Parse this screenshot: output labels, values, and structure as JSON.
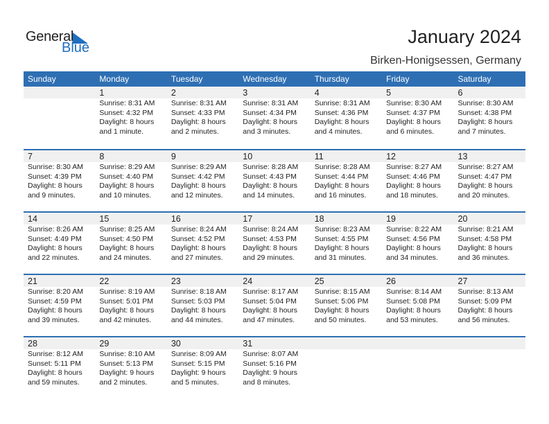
{
  "logo": {
    "word1": "General",
    "word2": "Blue"
  },
  "title": "January 2024",
  "location": "Birken-Honigsessen, Germany",
  "colors": {
    "header": "#2e6fb3",
    "band": "#f0f0f0",
    "logo_blue": "#1f6fbf"
  },
  "weekdays": [
    "Sunday",
    "Monday",
    "Tuesday",
    "Wednesday",
    "Thursday",
    "Friday",
    "Saturday"
  ],
  "weeks": [
    [
      null,
      {
        "day": "1",
        "sunrise": "Sunrise: 8:31 AM",
        "sunset": "Sunset: 4:32 PM",
        "daylight1": "Daylight: 8 hours",
        "daylight2": "and 1 minute."
      },
      {
        "day": "2",
        "sunrise": "Sunrise: 8:31 AM",
        "sunset": "Sunset: 4:33 PM",
        "daylight1": "Daylight: 8 hours",
        "daylight2": "and 2 minutes."
      },
      {
        "day": "3",
        "sunrise": "Sunrise: 8:31 AM",
        "sunset": "Sunset: 4:34 PM",
        "daylight1": "Daylight: 8 hours",
        "daylight2": "and 3 minutes."
      },
      {
        "day": "4",
        "sunrise": "Sunrise: 8:31 AM",
        "sunset": "Sunset: 4:36 PM",
        "daylight1": "Daylight: 8 hours",
        "daylight2": "and 4 minutes."
      },
      {
        "day": "5",
        "sunrise": "Sunrise: 8:30 AM",
        "sunset": "Sunset: 4:37 PM",
        "daylight1": "Daylight: 8 hours",
        "daylight2": "and 6 minutes."
      },
      {
        "day": "6",
        "sunrise": "Sunrise: 8:30 AM",
        "sunset": "Sunset: 4:38 PM",
        "daylight1": "Daylight: 8 hours",
        "daylight2": "and 7 minutes."
      }
    ],
    [
      {
        "day": "7",
        "sunrise": "Sunrise: 8:30 AM",
        "sunset": "Sunset: 4:39 PM",
        "daylight1": "Daylight: 8 hours",
        "daylight2": "and 9 minutes."
      },
      {
        "day": "8",
        "sunrise": "Sunrise: 8:29 AM",
        "sunset": "Sunset: 4:40 PM",
        "daylight1": "Daylight: 8 hours",
        "daylight2": "and 10 minutes."
      },
      {
        "day": "9",
        "sunrise": "Sunrise: 8:29 AM",
        "sunset": "Sunset: 4:42 PM",
        "daylight1": "Daylight: 8 hours",
        "daylight2": "and 12 minutes."
      },
      {
        "day": "10",
        "sunrise": "Sunrise: 8:28 AM",
        "sunset": "Sunset: 4:43 PM",
        "daylight1": "Daylight: 8 hours",
        "daylight2": "and 14 minutes."
      },
      {
        "day": "11",
        "sunrise": "Sunrise: 8:28 AM",
        "sunset": "Sunset: 4:44 PM",
        "daylight1": "Daylight: 8 hours",
        "daylight2": "and 16 minutes."
      },
      {
        "day": "12",
        "sunrise": "Sunrise: 8:27 AM",
        "sunset": "Sunset: 4:46 PM",
        "daylight1": "Daylight: 8 hours",
        "daylight2": "and 18 minutes."
      },
      {
        "day": "13",
        "sunrise": "Sunrise: 8:27 AM",
        "sunset": "Sunset: 4:47 PM",
        "daylight1": "Daylight: 8 hours",
        "daylight2": "and 20 minutes."
      }
    ],
    [
      {
        "day": "14",
        "sunrise": "Sunrise: 8:26 AM",
        "sunset": "Sunset: 4:49 PM",
        "daylight1": "Daylight: 8 hours",
        "daylight2": "and 22 minutes."
      },
      {
        "day": "15",
        "sunrise": "Sunrise: 8:25 AM",
        "sunset": "Sunset: 4:50 PM",
        "daylight1": "Daylight: 8 hours",
        "daylight2": "and 24 minutes."
      },
      {
        "day": "16",
        "sunrise": "Sunrise: 8:24 AM",
        "sunset": "Sunset: 4:52 PM",
        "daylight1": "Daylight: 8 hours",
        "daylight2": "and 27 minutes."
      },
      {
        "day": "17",
        "sunrise": "Sunrise: 8:24 AM",
        "sunset": "Sunset: 4:53 PM",
        "daylight1": "Daylight: 8 hours",
        "daylight2": "and 29 minutes."
      },
      {
        "day": "18",
        "sunrise": "Sunrise: 8:23 AM",
        "sunset": "Sunset: 4:55 PM",
        "daylight1": "Daylight: 8 hours",
        "daylight2": "and 31 minutes."
      },
      {
        "day": "19",
        "sunrise": "Sunrise: 8:22 AM",
        "sunset": "Sunset: 4:56 PM",
        "daylight1": "Daylight: 8 hours",
        "daylight2": "and 34 minutes."
      },
      {
        "day": "20",
        "sunrise": "Sunrise: 8:21 AM",
        "sunset": "Sunset: 4:58 PM",
        "daylight1": "Daylight: 8 hours",
        "daylight2": "and 36 minutes."
      }
    ],
    [
      {
        "day": "21",
        "sunrise": "Sunrise: 8:20 AM",
        "sunset": "Sunset: 4:59 PM",
        "daylight1": "Daylight: 8 hours",
        "daylight2": "and 39 minutes."
      },
      {
        "day": "22",
        "sunrise": "Sunrise: 8:19 AM",
        "sunset": "Sunset: 5:01 PM",
        "daylight1": "Daylight: 8 hours",
        "daylight2": "and 42 minutes."
      },
      {
        "day": "23",
        "sunrise": "Sunrise: 8:18 AM",
        "sunset": "Sunset: 5:03 PM",
        "daylight1": "Daylight: 8 hours",
        "daylight2": "and 44 minutes."
      },
      {
        "day": "24",
        "sunrise": "Sunrise: 8:17 AM",
        "sunset": "Sunset: 5:04 PM",
        "daylight1": "Daylight: 8 hours",
        "daylight2": "and 47 minutes."
      },
      {
        "day": "25",
        "sunrise": "Sunrise: 8:15 AM",
        "sunset": "Sunset: 5:06 PM",
        "daylight1": "Daylight: 8 hours",
        "daylight2": "and 50 minutes."
      },
      {
        "day": "26",
        "sunrise": "Sunrise: 8:14 AM",
        "sunset": "Sunset: 5:08 PM",
        "daylight1": "Daylight: 8 hours",
        "daylight2": "and 53 minutes."
      },
      {
        "day": "27",
        "sunrise": "Sunrise: 8:13 AM",
        "sunset": "Sunset: 5:09 PM",
        "daylight1": "Daylight: 8 hours",
        "daylight2": "and 56 minutes."
      }
    ],
    [
      {
        "day": "28",
        "sunrise": "Sunrise: 8:12 AM",
        "sunset": "Sunset: 5:11 PM",
        "daylight1": "Daylight: 8 hours",
        "daylight2": "and 59 minutes."
      },
      {
        "day": "29",
        "sunrise": "Sunrise: 8:10 AM",
        "sunset": "Sunset: 5:13 PM",
        "daylight1": "Daylight: 9 hours",
        "daylight2": "and 2 minutes."
      },
      {
        "day": "30",
        "sunrise": "Sunrise: 8:09 AM",
        "sunset": "Sunset: 5:15 PM",
        "daylight1": "Daylight: 9 hours",
        "daylight2": "and 5 minutes."
      },
      {
        "day": "31",
        "sunrise": "Sunrise: 8:07 AM",
        "sunset": "Sunset: 5:16 PM",
        "daylight1": "Daylight: 9 hours",
        "daylight2": "and 8 minutes."
      },
      null,
      null,
      null
    ]
  ]
}
